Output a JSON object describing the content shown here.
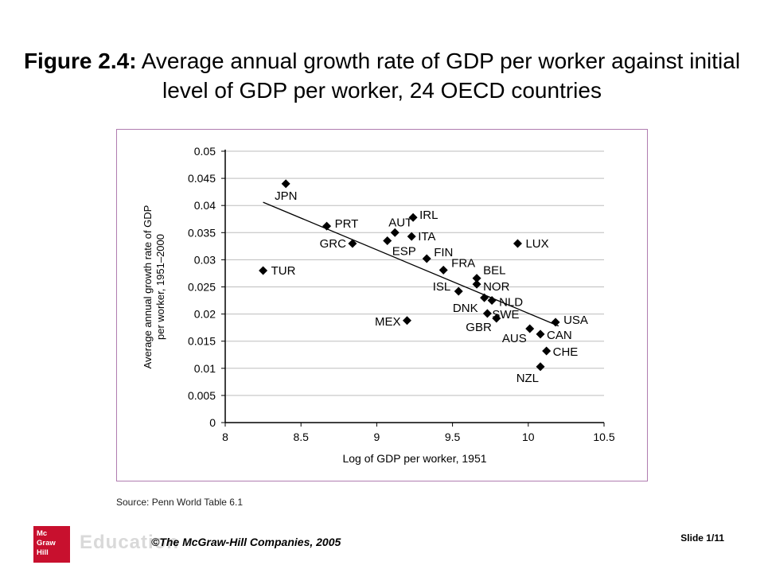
{
  "title": {
    "bold": "Figure 2.4:",
    "rest": " Average annual growth rate of GDP per worker against initial level of GDP per worker, 24 OECD countries"
  },
  "source": "Source: Penn World Table 6.1",
  "footer": {
    "logo_lines": [
      "Mc",
      "Graw",
      "Hill"
    ],
    "logo_word": "Education",
    "copyright": "©The McGraw-Hill Companies, 2005",
    "slide": "Slide 1/11"
  },
  "colors": {
    "frame": "#b07cb0",
    "logo": "#c8102e",
    "grid": "#bdbdbd",
    "marker": "#000000"
  },
  "chart_data": {
    "type": "scatter",
    "xlabel": "Log of GDP per worker, 1951",
    "ylabel": "Average annual growth rate of GDP per worker, 1951–2000",
    "xlim": [
      8,
      10.5
    ],
    "ylim": [
      0,
      0.05
    ],
    "xticks": [
      "8",
      "8.5",
      "9",
      "9.5",
      "10",
      "10.5"
    ],
    "yticks": [
      "0",
      "0.005",
      "0.01",
      "0.015",
      "0.02",
      "0.025",
      "0.03",
      "0.035",
      "0.04",
      "0.045",
      "0.05"
    ],
    "grid": "horizontal",
    "points": [
      {
        "label": "JPN",
        "x": 8.4,
        "y": 0.044
      },
      {
        "label": "TUR",
        "x": 8.25,
        "y": 0.028
      },
      {
        "label": "PRT",
        "x": 8.67,
        "y": 0.0362
      },
      {
        "label": "GRC",
        "x": 8.84,
        "y": 0.033
      },
      {
        "label": "AUT",
        "x": 9.12,
        "y": 0.035
      },
      {
        "label": "IRL",
        "x": 9.24,
        "y": 0.0378
      },
      {
        "label": "ITA",
        "x": 9.23,
        "y": 0.0343
      },
      {
        "label": "ESP",
        "x": 9.07,
        "y": 0.0335
      },
      {
        "label": "FIN",
        "x": 9.33,
        "y": 0.0302
      },
      {
        "label": "FRA",
        "x": 9.44,
        "y": 0.0281
      },
      {
        "label": "BEL",
        "x": 9.66,
        "y": 0.0266
      },
      {
        "label": "NOR",
        "x": 9.66,
        "y": 0.0255
      },
      {
        "label": "ISL",
        "x": 9.54,
        "y": 0.0242
      },
      {
        "label": "DNK",
        "x": 9.71,
        "y": 0.023
      },
      {
        "label": "NLD",
        "x": 9.76,
        "y": 0.0225
      },
      {
        "label": "SWE",
        "x": 9.73,
        "y": 0.0201
      },
      {
        "label": "GBR",
        "x": 9.79,
        "y": 0.0192
      },
      {
        "label": "MEX",
        "x": 9.2,
        "y": 0.0188
      },
      {
        "label": "LUX",
        "x": 9.93,
        "y": 0.033
      },
      {
        "label": "USA",
        "x": 10.18,
        "y": 0.0185
      },
      {
        "label": "AUS",
        "x": 10.01,
        "y": 0.0173
      },
      {
        "label": "CAN",
        "x": 10.08,
        "y": 0.0163
      },
      {
        "label": "CHE",
        "x": 10.12,
        "y": 0.0132
      },
      {
        "label": "NZL",
        "x": 10.08,
        "y": 0.0103
      }
    ],
    "trend_line": {
      "x": [
        8.25,
        10.2
      ],
      "y": [
        0.0406,
        0.0178
      ]
    }
  }
}
